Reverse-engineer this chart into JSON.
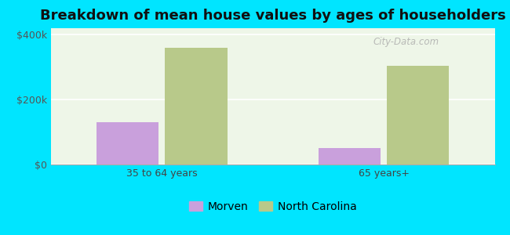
{
  "title": "Breakdown of mean house values by ages of householders",
  "categories": [
    "35 to 64 years",
    "65 years+"
  ],
  "series": [
    {
      "name": "Morven",
      "values": [
        130000,
        50000
      ],
      "color": "#c9a0dc"
    },
    {
      "name": "North Carolina",
      "values": [
        360000,
        305000
      ],
      "color": "#b8c98a"
    }
  ],
  "ylim": [
    0,
    420000
  ],
  "yticks": [
    0,
    200000,
    400000
  ],
  "ytick_labels": [
    "$0",
    "$200k",
    "$400k"
  ],
  "background_color": "#00e5ff",
  "bar_width": 0.28,
  "title_fontsize": 13,
  "tick_fontsize": 9,
  "legend_fontsize": 10,
  "watermark": "City-Data.com"
}
